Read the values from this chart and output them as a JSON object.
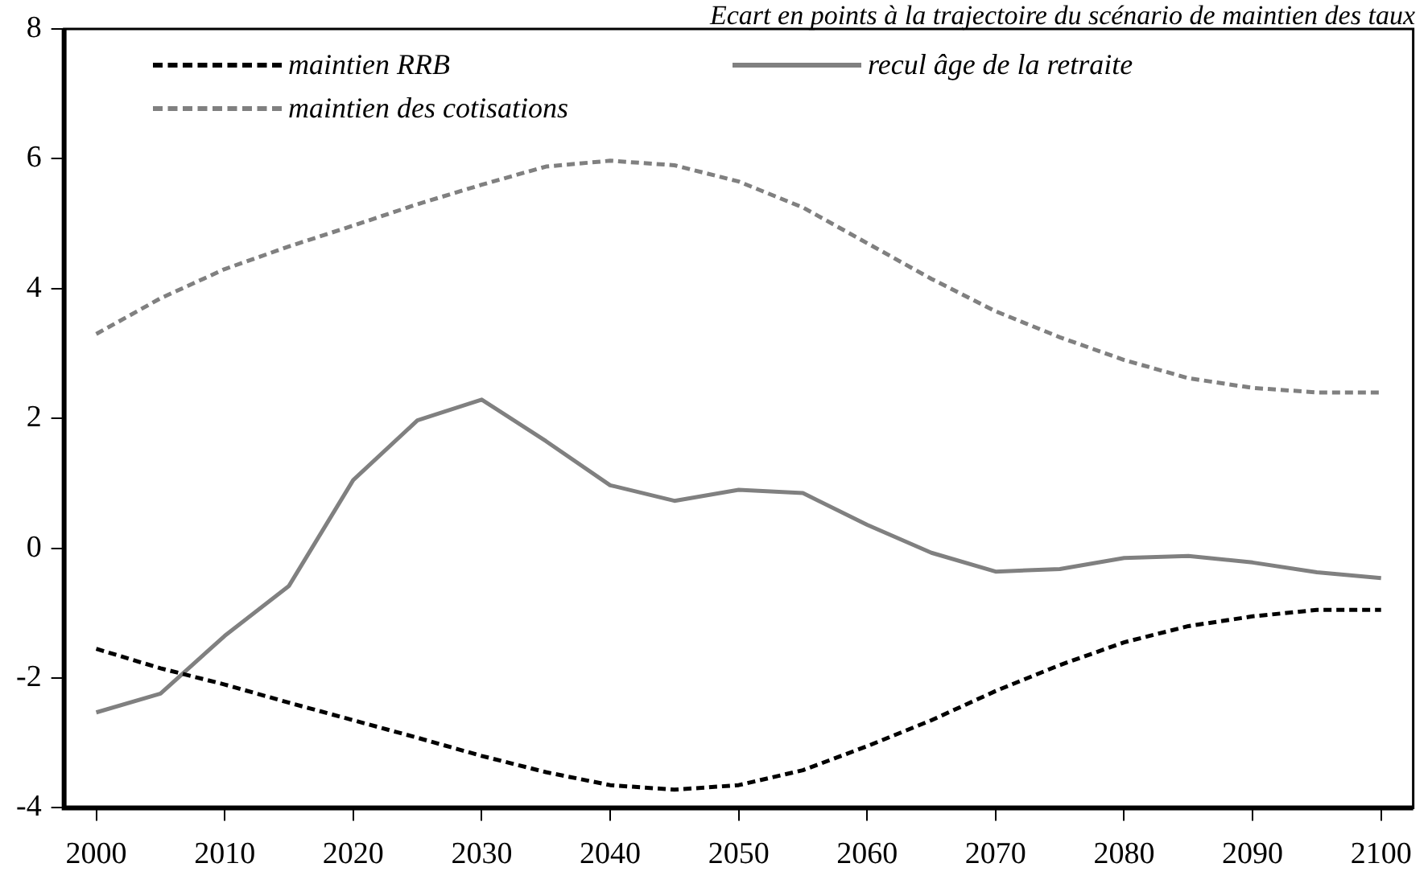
{
  "chart_data": {
    "type": "line",
    "title": "Ecart en points à la trajectoire du scénario de maintien des taux",
    "x": [
      2000,
      2005,
      2010,
      2015,
      2020,
      2025,
      2030,
      2035,
      2040,
      2045,
      2050,
      2055,
      2060,
      2065,
      2070,
      2075,
      2080,
      2085,
      2090,
      2095,
      2100
    ],
    "series": [
      {
        "name": "maintien RRB",
        "color": "#000000",
        "line_style": "dashed",
        "values": [
          -1.55,
          -1.85,
          -2.1,
          -2.38,
          -2.65,
          -2.92,
          -3.2,
          -3.45,
          -3.65,
          -3.72,
          -3.65,
          -3.42,
          -3.05,
          -2.65,
          -2.2,
          -1.8,
          -1.45,
          -1.2,
          -1.05,
          -0.95,
          -0.95
        ]
      },
      {
        "name": "recul âge de la retraite",
        "color": "#808080",
        "line_style": "solid",
        "values": [
          -2.53,
          -2.24,
          -1.35,
          -0.58,
          1.05,
          1.97,
          2.29,
          1.65,
          0.97,
          0.73,
          0.9,
          0.85,
          0.36,
          -0.07,
          -0.36,
          -0.32,
          -0.15,
          -0.12,
          -0.22,
          -0.37,
          -0.46
        ]
      },
      {
        "name": "maintien des cotisations",
        "color": "#808080",
        "line_style": "dashed",
        "values": [
          3.3,
          3.85,
          4.3,
          4.65,
          4.97,
          5.3,
          5.6,
          5.88,
          5.97,
          5.9,
          5.65,
          5.25,
          4.7,
          4.15,
          3.65,
          3.25,
          2.9,
          2.62,
          2.47,
          2.4,
          2.4
        ]
      }
    ],
    "xlim": [
      1997.5,
      2102.5
    ],
    "xticks": [
      2000,
      2010,
      2020,
      2030,
      2040,
      2050,
      2060,
      2070,
      2080,
      2090,
      2100
    ],
    "ylim": [
      -4,
      8
    ],
    "yticks": [
      -4,
      -2,
      0,
      2,
      4,
      6,
      8
    ],
    "grid": false,
    "legend": "top",
    "marker": "none"
  }
}
